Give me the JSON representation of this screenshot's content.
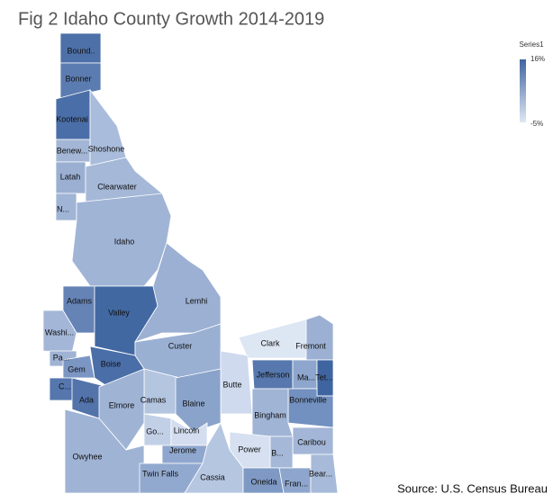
{
  "title": "Fig 2 Idaho County Growth 2014-2019",
  "legend": {
    "title": "Series1",
    "max": {
      "value": 16,
      "label": "16%"
    },
    "min": {
      "value": -5,
      "label": "-5%"
    },
    "max_color": "#3f65a0",
    "min_color": "#dfe7f3"
  },
  "source": "Source: U.S. Census Bureau",
  "counties": [
    {
      "name": "Bound..",
      "color": "#4d70a8"
    },
    {
      "name": "Bonner",
      "color": "#5b7cb1"
    },
    {
      "name": "Kootenai",
      "color": "#4a6ea7"
    },
    {
      "name": "Benew...",
      "color": "#a3b6d6"
    },
    {
      "name": "Shoshone",
      "color": "#a9bcdb"
    },
    {
      "name": "Latah",
      "color": "#9aafd2"
    },
    {
      "name": "Clearwater",
      "color": "#a5b8d8"
    },
    {
      "name": "N...",
      "color": "#a0b4d5"
    },
    {
      "name": "Idaho",
      "color": "#a0b4d6"
    },
    {
      "name": "Adams",
      "color": "#6683b6"
    },
    {
      "name": "Valley",
      "color": "#4268a2"
    },
    {
      "name": "Lemhi",
      "color": "#9cb0d3"
    },
    {
      "name": "Washi...",
      "color": "#a3b6d7"
    },
    {
      "name": "Custer",
      "color": "#9ab0d3"
    },
    {
      "name": "Clark",
      "color": "#dde6f3"
    },
    {
      "name": "Fremont",
      "color": "#9bb0d3"
    },
    {
      "name": "Pa...",
      "color": "#9fb3d5"
    },
    {
      "name": "Gem",
      "color": "#7b96c3"
    },
    {
      "name": "Boise",
      "color": "#4a6ea7"
    },
    {
      "name": "Butte",
      "color": "#cfdaee"
    },
    {
      "name": "Jefferson",
      "color": "#5678ae"
    },
    {
      "name": "Ma...",
      "color": "#8ea6cd"
    },
    {
      "name": "Tet...",
      "color": "#3f65a0"
    },
    {
      "name": "C...",
      "color": "#5677ae"
    },
    {
      "name": "Ada",
      "color": "#5373ab"
    },
    {
      "name": "Camas",
      "color": "#b4c5e0"
    },
    {
      "name": "Blaine",
      "color": "#8aa3cb"
    },
    {
      "name": "Bonneville",
      "color": "#7290c0"
    },
    {
      "name": "Elmore",
      "color": "#9fb3d5"
    },
    {
      "name": "Bingham",
      "color": "#a0b4d5"
    },
    {
      "name": "Go...",
      "color": "#c2d0e7"
    },
    {
      "name": "Lincoln",
      "color": "#d3ddef"
    },
    {
      "name": "Caribou",
      "color": "#a3b6d7"
    },
    {
      "name": "Jerome",
      "color": "#8fa7ce"
    },
    {
      "name": "Power",
      "color": "#d6e0f0"
    },
    {
      "name": "B...",
      "color": "#a5b8d8"
    },
    {
      "name": "Owyhee",
      "color": "#9fb3d5"
    },
    {
      "name": "Twin Falls",
      "color": "#92a9cf"
    },
    {
      "name": "Cassia",
      "color": "#b5c6e1"
    },
    {
      "name": "Oneida",
      "color": "#7e99c4"
    },
    {
      "name": "Fran...",
      "color": "#8ea6cd"
    },
    {
      "name": "Bear...",
      "color": "#a7bad9"
    }
  ]
}
